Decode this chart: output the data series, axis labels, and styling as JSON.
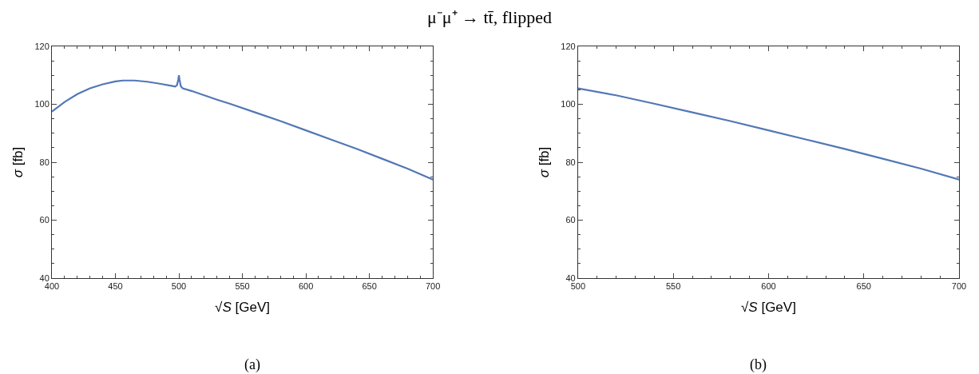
{
  "chart_data": [
    {
      "type": "line",
      "title": "μ⁻μ⁺ → tt̄, flipped",
      "xlabel": "√S [GeV]",
      "ylabel": "σ [fb]",
      "annotations": [
        "(a)"
      ],
      "x": [
        400,
        410,
        420,
        430,
        440,
        450,
        456,
        465,
        475,
        485,
        495,
        497,
        498.5,
        499.5,
        500,
        500.5,
        501.5,
        503,
        510,
        520,
        530,
        540,
        560,
        580,
        600,
        620,
        640,
        660,
        680,
        700
      ],
      "series": [
        {
          "color": "#5277b5",
          "values": [
            97.5,
            100.8,
            103.5,
            105.5,
            106.9,
            107.9,
            108.2,
            108.2,
            107.8,
            107.1,
            106.3,
            106.1,
            106.6,
            108.5,
            110,
            108.5,
            106.2,
            105.5,
            104.6,
            103.1,
            101.6,
            100.2,
            97.2,
            94.2,
            91,
            87.8,
            84.6,
            81.2,
            77.8,
            74
          ]
        }
      ],
      "xlim": [
        400,
        700
      ],
      "xticks": [
        400,
        450,
        500,
        550,
        600,
        650,
        700
      ],
      "ylim": [
        40,
        120
      ],
      "yticks": [
        40,
        60,
        80,
        100,
        120
      ],
      "grid": false,
      "marker": "none",
      "line_style": "solid"
    },
    {
      "type": "line",
      "xlabel": "√S [GeV]",
      "ylabel": "σ [fb]",
      "annotations": [
        "(b)"
      ],
      "x": [
        500,
        520,
        540,
        560,
        580,
        600,
        620,
        640,
        660,
        680,
        700
      ],
      "series": [
        {
          "color": "#5277b5",
          "values": [
            105.5,
            103.1,
            100.2,
            97.2,
            94.2,
            91,
            87.8,
            84.6,
            81.2,
            77.8,
            74
          ]
        }
      ],
      "xlim": [
        500,
        700
      ],
      "xticks": [
        500,
        550,
        600,
        650,
        700
      ],
      "ylim": [
        40,
        120
      ],
      "yticks": [
        40,
        60,
        80,
        100,
        120
      ],
      "grid": false,
      "marker": "none",
      "line_style": "solid"
    }
  ]
}
